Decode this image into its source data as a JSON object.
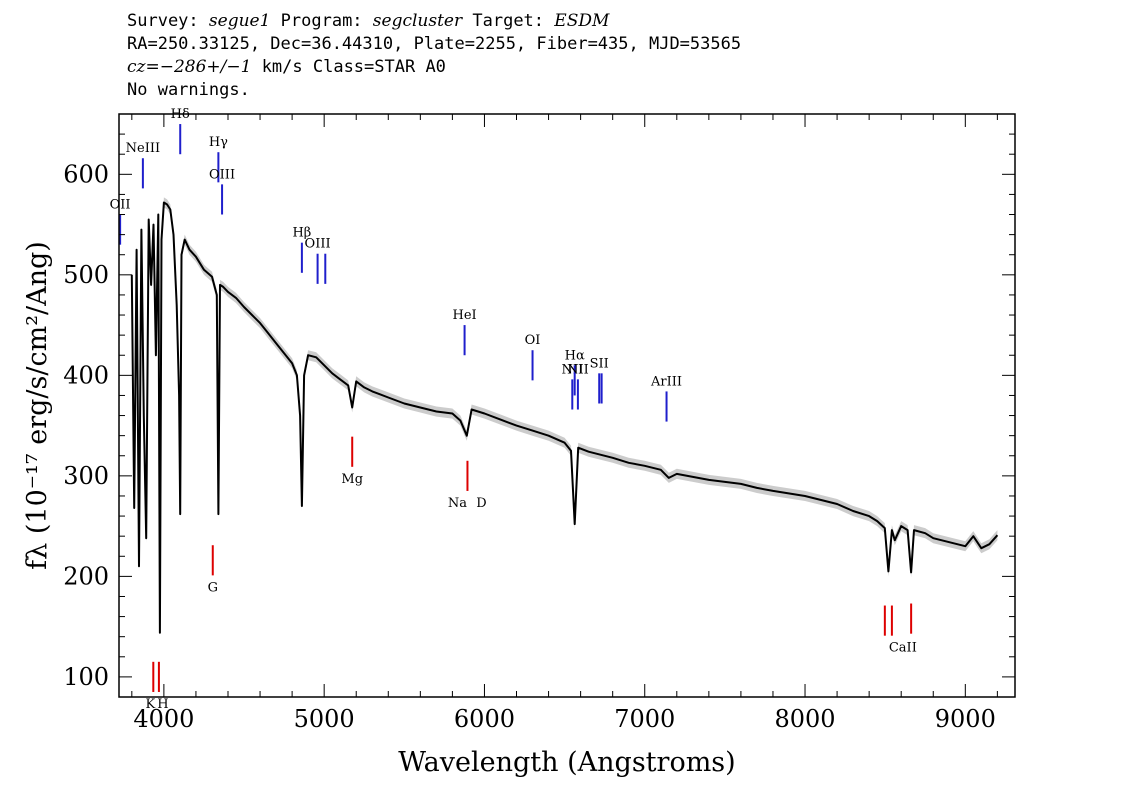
{
  "header": {
    "line1": {
      "survey_label": "Survey:",
      "survey": "segue1",
      "program_label": "Program:",
      "program": "segcluster",
      "target_label": "Target:",
      "target": "ESDM"
    },
    "line2": "RA=250.33125, Dec=36.44310, Plate=2255, Fiber=435, MJD=53565",
    "line3": {
      "cz": "cz=−286+/−1",
      "rest": " km/s Class=STAR A0"
    },
    "line4": "No warnings."
  },
  "chart_data": {
    "type": "line",
    "xlabel": "Wavelength (Angstroms)",
    "ylabel": "fλ (10⁻¹⁷ erg/s/cm²/Ang)",
    "xlim": [
      3720,
      9310
    ],
    "ylim": [
      80,
      660
    ],
    "x_ticks": [
      4000,
      5000,
      6000,
      7000,
      8000,
      9000
    ],
    "y_ticks": [
      100,
      200,
      300,
      400,
      500,
      600
    ],
    "spectrum": {
      "x": [
        3800,
        3815,
        3830,
        3845,
        3860,
        3875,
        3890,
        3905,
        3920,
        3935,
        3950,
        3965,
        3975,
        3985,
        4000,
        4020,
        4040,
        4060,
        4080,
        4095,
        4102,
        4110,
        4130,
        4160,
        4200,
        4250,
        4300,
        4330,
        4340,
        4350,
        4370,
        4400,
        4450,
        4500,
        4550,
        4600,
        4650,
        4700,
        4750,
        4800,
        4830,
        4850,
        4861,
        4875,
        4900,
        4950,
        5000,
        5050,
        5100,
        5150,
        5175,
        5200,
        5250,
        5300,
        5400,
        5500,
        5600,
        5700,
        5800,
        5850,
        5890,
        5920,
        6000,
        6100,
        6200,
        6300,
        6400,
        6500,
        6540,
        6563,
        6585,
        6650,
        6800,
        6900,
        7000,
        7100,
        7150,
        7200,
        7400,
        7600,
        7700,
        7800,
        8000,
        8100,
        8200,
        8300,
        8400,
        8450,
        8498,
        8520,
        8542,
        8560,
        8600,
        8640,
        8662,
        8680,
        8750,
        8800,
        8900,
        9000,
        9050,
        9100,
        9150,
        9200
      ],
      "y": [
        500,
        268,
        525,
        210,
        545,
        360,
        238,
        555,
        490,
        550,
        420,
        560,
        144,
        535,
        572,
        570,
        565,
        540,
        470,
        380,
        262,
        520,
        535,
        525,
        518,
        505,
        498,
        480,
        262,
        490,
        488,
        483,
        477,
        468,
        460,
        452,
        442,
        432,
        422,
        412,
        400,
        360,
        270,
        400,
        420,
        418,
        410,
        402,
        396,
        390,
        368,
        394,
        388,
        384,
        378,
        372,
        368,
        364,
        362,
        355,
        340,
        366,
        362,
        356,
        350,
        345,
        340,
        333,
        325,
        252,
        328,
        324,
        318,
        313,
        310,
        306,
        298,
        302,
        296,
        292,
        288,
        285,
        280,
        276,
        272,
        265,
        260,
        255,
        248,
        205,
        246,
        236,
        250,
        246,
        204,
        246,
        243,
        238,
        234,
        230,
        240,
        228,
        232,
        241
      ]
    },
    "emission_lines": [
      {
        "label": "NeIII",
        "wavelength": 3869,
        "flux": 586,
        "color": "#1f1fcc"
      },
      {
        "label": "OII",
        "wavelength": 3727,
        "flux": 530,
        "color": "#1f1fcc"
      },
      {
        "label": "Hδ",
        "wavelength": 4102,
        "flux": 620,
        "color": "#1f1fcc"
      },
      {
        "label": "Hγ",
        "wavelength": 4340,
        "flux": 592,
        "color": "#1f1fcc"
      },
      {
        "label": "OIII",
        "wavelength": 4363,
        "flux": 560,
        "color": "#1f1fcc"
      },
      {
        "label": "Hβ",
        "wavelength": 4861,
        "flux": 502,
        "color": "#1f1fcc"
      },
      {
        "label": "OIII",
        "wavelength": 4959,
        "flux": 491,
        "color": "#1f1fcc"
      },
      {
        "label": "",
        "wavelength": 5007,
        "flux": 491,
        "color": "#1f1fcc"
      },
      {
        "label": "HeI",
        "wavelength": 5876,
        "flux": 420,
        "color": "#1f1fcc"
      },
      {
        "label": "OI",
        "wavelength": 6300,
        "flux": 395,
        "color": "#1f1fcc"
      },
      {
        "label": "NII",
        "wavelength": 6548,
        "flux": 366,
        "color": "#1f1fcc"
      },
      {
        "label": "Hα",
        "wavelength": 6563,
        "flux": 380,
        "color": "#1f1fcc"
      },
      {
        "label": "NII",
        "wavelength": 6583,
        "flux": 366,
        "color": "#1f1fcc"
      },
      {
        "label": "SII",
        "wavelength": 6716,
        "flux": 372,
        "color": "#1f1fcc"
      },
      {
        "label": "",
        "wavelength": 6731,
        "flux": 372,
        "color": "#1f1fcc"
      },
      {
        "label": "ArIII",
        "wavelength": 7136,
        "flux": 354,
        "color": "#1f1fcc"
      }
    ],
    "absorption_lines": [
      {
        "label": "K",
        "wavelength": 3934,
        "flux": 115,
        "color": "#dd0000"
      },
      {
        "label": "H",
        "wavelength": 3969,
        "flux": 115,
        "color": "#dd0000"
      },
      {
        "label": "G",
        "wavelength": 4305,
        "flux": 231,
        "color": "#dd0000"
      },
      {
        "label": "Mg",
        "wavelength": 5175,
        "flux": 339,
        "color": "#dd0000"
      },
      {
        "label": "Na",
        "wavelength": 5894,
        "flux": 315,
        "color": "#dd0000"
      },
      {
        "label": "D",
        "wavelength": 5894,
        "flux": 315,
        "color": "#dd0000"
      },
      {
        "label": "CaII",
        "wavelength": 8498,
        "flux": 171,
        "color": "#dd0000"
      },
      {
        "label": "",
        "wavelength": 8542,
        "flux": 171,
        "color": "#dd0000"
      },
      {
        "label": "",
        "wavelength": 8662,
        "flux": 173,
        "color": "#dd0000"
      }
    ],
    "grid": false,
    "colors": {
      "spectrum": "#000000",
      "error_band": "#aaaaaa",
      "emission": "#1f1fcc",
      "absorption": "#dd0000"
    }
  }
}
